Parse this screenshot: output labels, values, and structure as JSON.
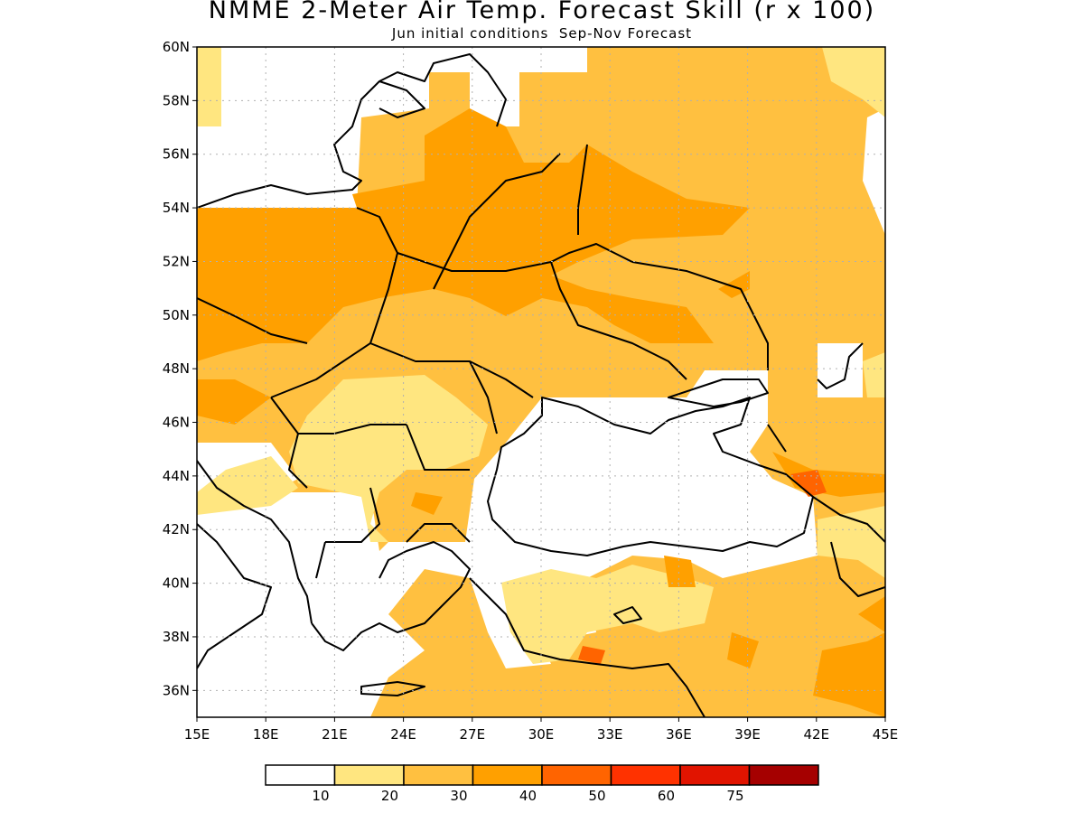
{
  "title": "NMME 2-Meter Air Temp. Forecast Skill (r x 100)",
  "subtitle": "Jun initial conditions  Sep-Nov Forecast",
  "lat_ticks": [
    "60N",
    "58N",
    "56N",
    "54N",
    "52N",
    "50N",
    "48N",
    "46N",
    "44N",
    "42N",
    "40N",
    "38N",
    "36N"
  ],
  "lon_ticks": [
    "15E",
    "18E",
    "21E",
    "24E",
    "27E",
    "30E",
    "33E",
    "36E",
    "39E",
    "42E",
    "45E"
  ],
  "colorbar": {
    "colors": [
      "#ffffff",
      "#ffe680",
      "#ffc040",
      "#ffa000",
      "#ff6400",
      "#ff3200",
      "#e11400",
      "#a50000"
    ],
    "labels": [
      "10",
      "20",
      "30",
      "40",
      "50",
      "60",
      "75"
    ]
  },
  "map_extent": {
    "lon_min": 15,
    "lon_max": 45,
    "lat_min": 35,
    "lat_max": 60
  },
  "palette": {
    "level1": "#ffe680",
    "level2": "#ffc040",
    "level3": "#ffa000",
    "level4": "#ff6400",
    "level5": "#ff3200"
  }
}
